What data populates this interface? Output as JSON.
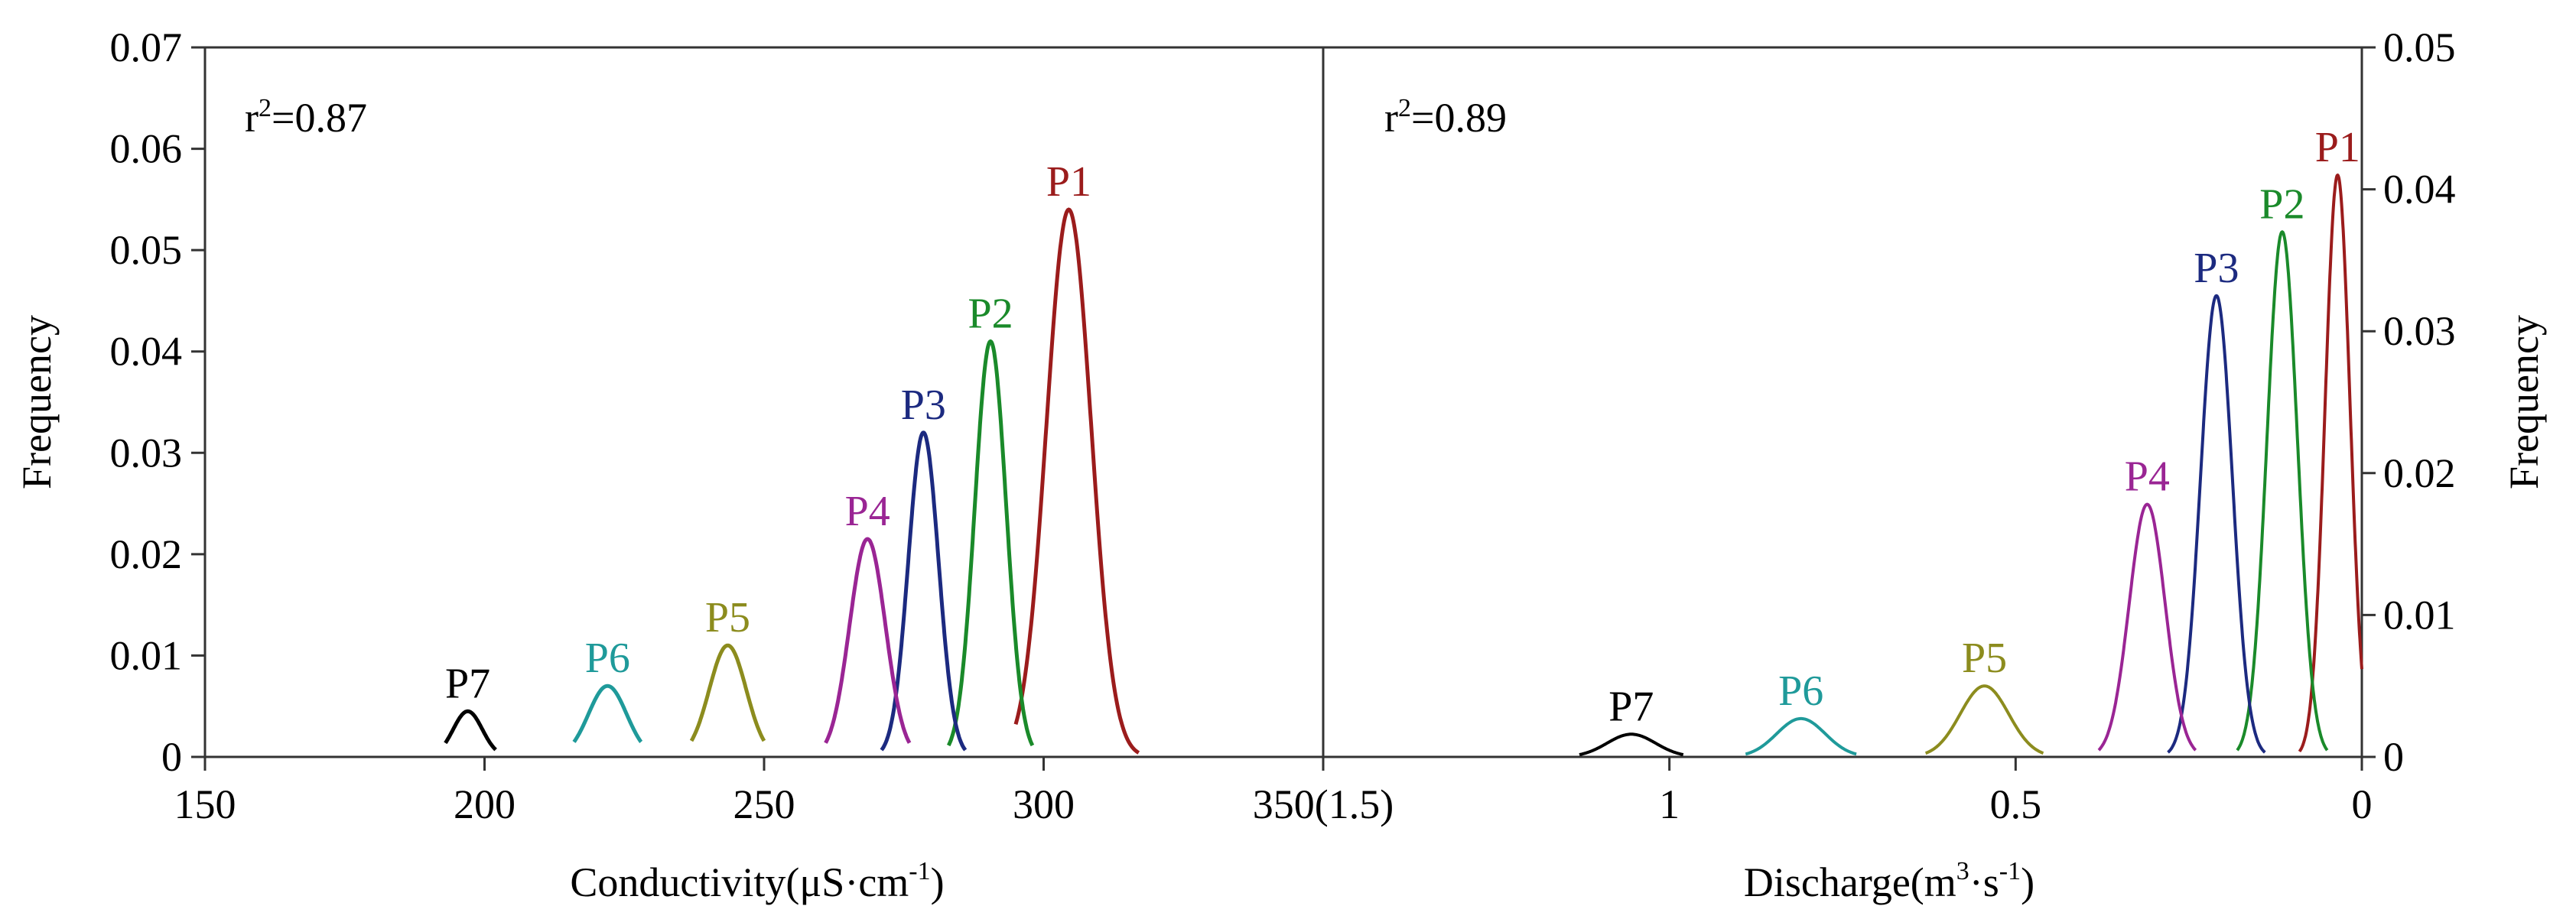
{
  "chart_data": [
    {
      "type": "line",
      "panel": "left",
      "xlabel_text": "Conductivity(μS·cm",
      "xlabel_sup": "-1",
      "xlabel_end": ")",
      "ylabel": "Frequency",
      "xlim": [
        150,
        350
      ],
      "ylim": [
        0,
        0.07
      ],
      "x_ticks": [
        "150",
        "200",
        "250",
        "300"
      ],
      "y_ticks": [
        "0",
        "0.01",
        "0.02",
        "0.03",
        "0.04",
        "0.05",
        "0.06",
        "0.07"
      ],
      "y_tick_values": [
        0,
        0.01,
        0.02,
        0.03,
        0.04,
        0.05,
        0.06,
        0.07
      ],
      "x_tick_values": [
        150,
        200,
        250,
        300
      ],
      "annotation": {
        "prefix": "r",
        "sup": "2",
        "value": "=0.87"
      },
      "series": [
        {
          "name": "P1",
          "color": "#9b1c1c",
          "mean": 304.5,
          "sd": 4.0,
          "range": [
            295,
            317
          ],
          "peak": 0.054
        },
        {
          "name": "P2",
          "color": "#1a8a2a",
          "mean": 290.5,
          "sd": 2.8,
          "range": [
            283,
            298
          ],
          "peak": 0.041
        },
        {
          "name": "P3",
          "color": "#1c2a80",
          "mean": 278.5,
          "sd": 2.7,
          "range": [
            271,
            286
          ],
          "peak": 0.032
        },
        {
          "name": "P4",
          "color": "#9a2594",
          "mean": 268.5,
          "sd": 3.2,
          "range": [
            261,
            276
          ],
          "peak": 0.0215
        },
        {
          "name": "P5",
          "color": "#8c8c1e",
          "mean": 243.5,
          "sd": 3.3,
          "range": [
            237,
            250
          ],
          "peak": 0.011
        },
        {
          "name": "P6",
          "color": "#1f9a9a",
          "mean": 222.0,
          "sd": 3.4,
          "range": [
            216,
            228
          ],
          "peak": 0.007
        },
        {
          "name": "P7",
          "color": "#000000",
          "mean": 197.0,
          "sd": 2.6,
          "range": [
            193,
            202
          ],
          "peak": 0.0045
        }
      ]
    },
    {
      "type": "line",
      "panel": "right",
      "xlabel_text": "Discharge(m",
      "xlabel_sup": "3",
      "xlabel_mid": "·s",
      "xlabel_sup2": "-1",
      "xlabel_end": ")",
      "ylabel": "Frequency",
      "xlim": [
        1.5,
        0
      ],
      "ylim": [
        0,
        0.05
      ],
      "x_ticks": [
        "350(1.5)",
        "1",
        "0.5",
        "0"
      ],
      "x_tick_values": [
        1.5,
        1.0,
        0.5,
        0.0
      ],
      "y_ticks": [
        "0",
        "0.01",
        "0.02",
        "0.03",
        "0.04",
        "0.05"
      ],
      "y_tick_values": [
        0,
        0.01,
        0.02,
        0.03,
        0.04,
        0.05
      ],
      "annotation": {
        "prefix": "r",
        "sup": "2",
        "value": "=0.89"
      },
      "series": [
        {
          "name": "P1",
          "color": "#9b1c1c",
          "mean": 0.035,
          "sd": 0.018,
          "range": [
            0.09,
            0.0
          ],
          "peak": 0.041
        },
        {
          "name": "P2",
          "color": "#1a8a2a",
          "mean": 0.115,
          "sd": 0.022,
          "range": [
            0.18,
            0.05
          ],
          "peak": 0.037
        },
        {
          "name": "P3",
          "color": "#1c2a80",
          "mean": 0.21,
          "sd": 0.023,
          "range": [
            0.28,
            0.14
          ],
          "peak": 0.0325
        },
        {
          "name": "P4",
          "color": "#9a2594",
          "mean": 0.31,
          "sd": 0.026,
          "range": [
            0.38,
            0.24
          ],
          "peak": 0.0178
        },
        {
          "name": "P5",
          "color": "#8c8c1e",
          "mean": 0.545,
          "sd": 0.035,
          "range": [
            0.63,
            0.46
          ],
          "peak": 0.005
        },
        {
          "name": "P6",
          "color": "#1f9a9a",
          "mean": 0.81,
          "sd": 0.035,
          "range": [
            0.89,
            0.73
          ],
          "peak": 0.0027
        },
        {
          "name": "P7",
          "color": "#000000",
          "mean": 1.055,
          "sd": 0.035,
          "range": [
            1.13,
            0.98
          ],
          "peak": 0.0016
        }
      ]
    }
  ]
}
